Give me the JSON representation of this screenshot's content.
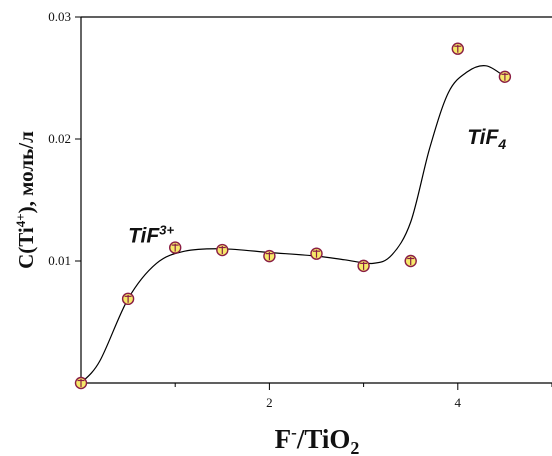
{
  "chart_data": {
    "type": "scatter",
    "xlim": [
      0,
      5
    ],
    "ylim": [
      0,
      0.03
    ],
    "x_ticks_labeled": [
      2,
      4
    ],
    "x_ticks_minor": [
      1,
      3,
      5
    ],
    "y_ticks_labeled": [
      0.01,
      0.02,
      0.03
    ],
    "y_tick_labels": [
      "0.01",
      "0.02",
      "0.03"
    ],
    "grid": false,
    "xlabel": {
      "prefix": "F",
      "sup": "-",
      "mid": "/TiO",
      "sub": "2"
    },
    "ylabel": {
      "prefix": "C(Ti",
      "sup": "4+",
      "suffix": "), моль/л"
    },
    "points": [
      {
        "x": 0.0,
        "y": 0.0
      },
      {
        "x": 0.5,
        "y": 0.0069
      },
      {
        "x": 1.0,
        "y": 0.0111
      },
      {
        "x": 1.5,
        "y": 0.0109
      },
      {
        "x": 2.0,
        "y": 0.0104
      },
      {
        "x": 2.5,
        "y": 0.0106
      },
      {
        "x": 3.0,
        "y": 0.0096
      },
      {
        "x": 3.5,
        "y": 0.01
      },
      {
        "x": 4.0,
        "y": 0.0274
      },
      {
        "x": 4.5,
        "y": 0.0251
      }
    ],
    "fit_curve": [
      {
        "x": 0.0,
        "y": 0.0
      },
      {
        "x": 0.2,
        "y": 0.0018
      },
      {
        "x": 0.5,
        "y": 0.0069
      },
      {
        "x": 0.8,
        "y": 0.0098
      },
      {
        "x": 1.1,
        "y": 0.0108
      },
      {
        "x": 1.5,
        "y": 0.011
      },
      {
        "x": 2.0,
        "y": 0.0107
      },
      {
        "x": 2.5,
        "y": 0.0104
      },
      {
        "x": 2.8,
        "y": 0.0101
      },
      {
        "x": 3.1,
        "y": 0.0098
      },
      {
        "x": 3.3,
        "y": 0.0105
      },
      {
        "x": 3.5,
        "y": 0.0132
      },
      {
        "x": 3.7,
        "y": 0.0192
      },
      {
        "x": 3.9,
        "y": 0.0238
      },
      {
        "x": 4.1,
        "y": 0.0255
      },
      {
        "x": 4.3,
        "y": 0.026
      },
      {
        "x": 4.5,
        "y": 0.0251
      }
    ],
    "annotations": [
      {
        "base": "TiF",
        "sup": "3+",
        "sub": "",
        "x": 0.5,
        "y": 0.0115
      },
      {
        "base": "TiF",
        "sup": "",
        "sub": "4",
        "x": 4.1,
        "y": 0.0196
      }
    ],
    "marker_fill": "#f6e86a",
    "marker_stroke": "#8a1e44",
    "line_color": "#000000"
  }
}
